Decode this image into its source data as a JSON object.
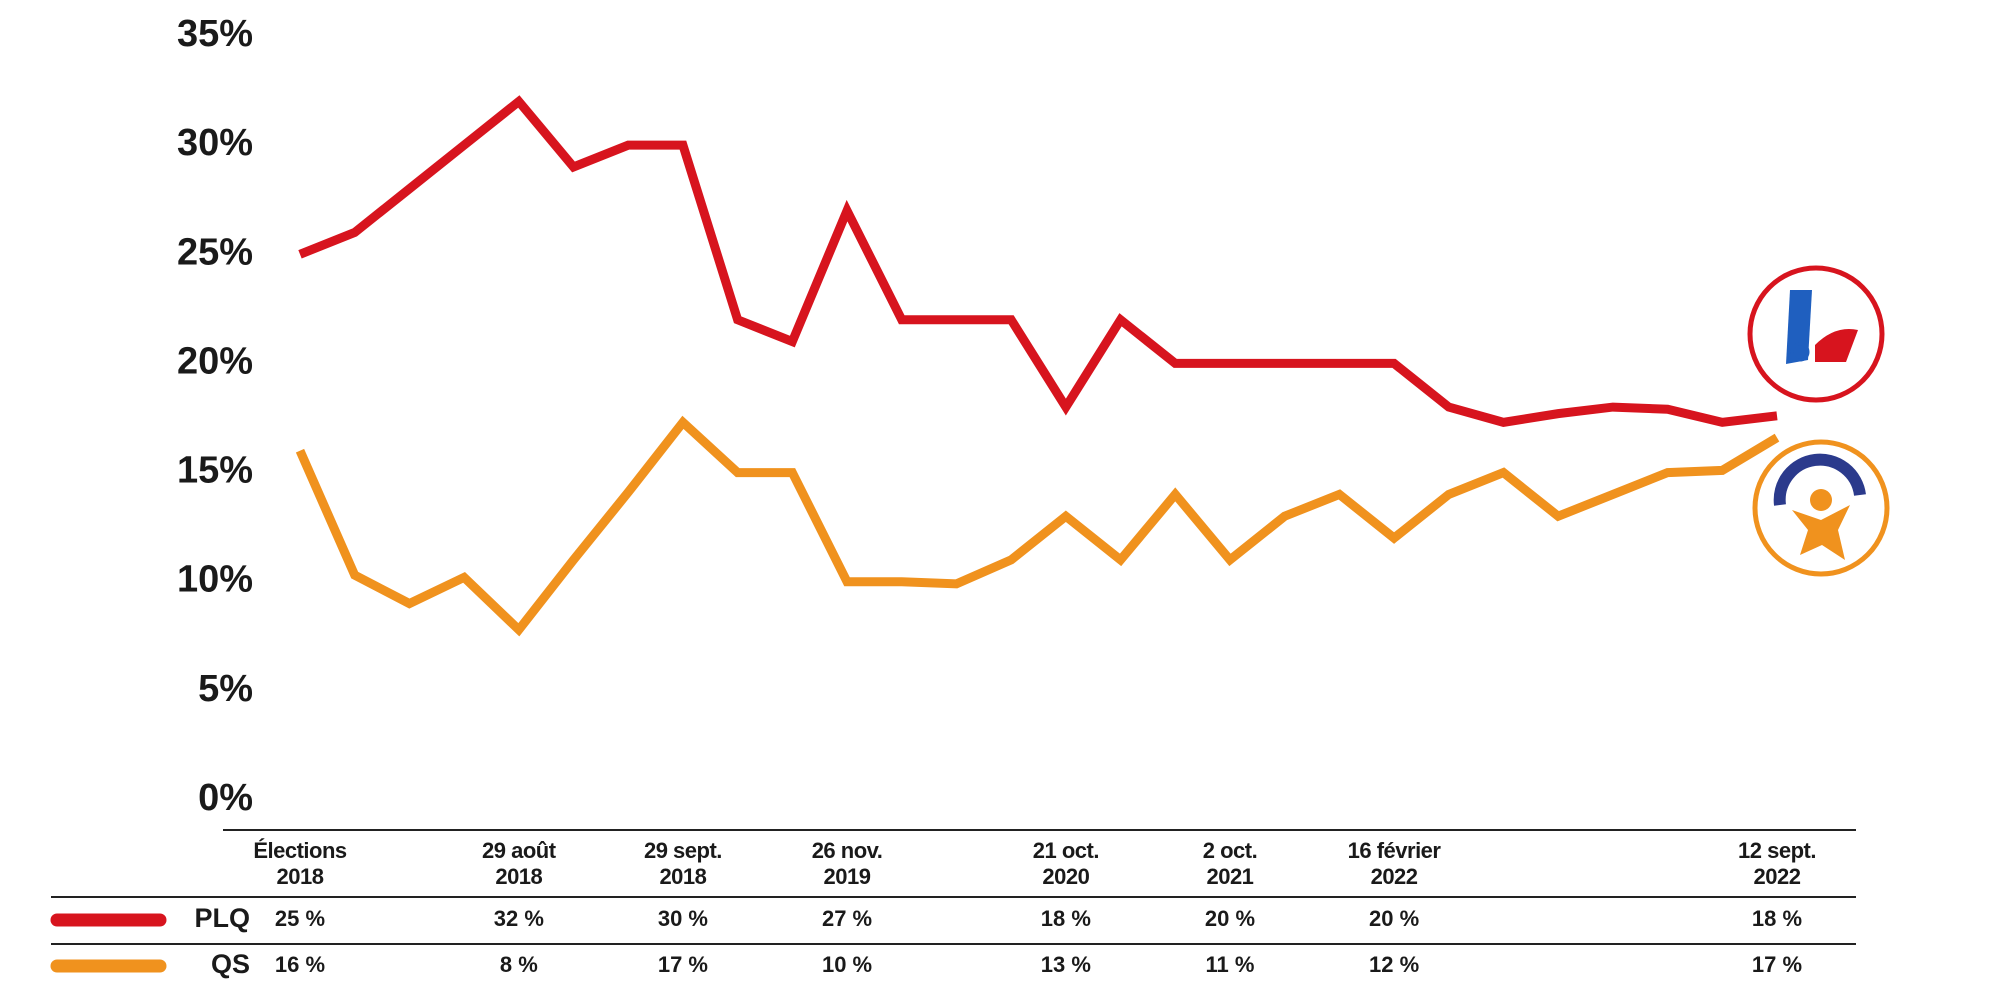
{
  "chart_data": {
    "type": "line",
    "categories": [
      "Élections\n2018",
      null,
      null,
      null,
      "29 août\n2018",
      null,
      null,
      "29 sept.\n2018",
      null,
      null,
      "26 nov.\n2019",
      null,
      null,
      null,
      "21 oct.\n2020",
      null,
      null,
      "2 oct.\n2021",
      null,
      null,
      "16 février\n2022",
      null,
      null,
      null,
      null,
      null,
      null,
      "12 sept.\n2022"
    ],
    "series": [
      {
        "name": "PLQ",
        "color": "#d7141e",
        "values": [
          25,
          26,
          28,
          30,
          32,
          29,
          30,
          30,
          22,
          21,
          27,
          22,
          22,
          22,
          18,
          22,
          20,
          20,
          20,
          20,
          20,
          18,
          17.3,
          17.7,
          18,
          17.9,
          17.3,
          17.6
        ],
        "value_labels": [
          "25 %",
          null,
          null,
          null,
          "32 %",
          null,
          null,
          "30 %",
          null,
          null,
          "27 %",
          null,
          null,
          null,
          "18 %",
          null,
          null,
          "20 %",
          null,
          null,
          "20 %",
          null,
          null,
          null,
          null,
          null,
          null,
          "18 %"
        ]
      },
      {
        "name": "QS",
        "color": "#f0921e",
        "values": [
          16,
          10.3,
          9,
          10.2,
          7.8,
          11,
          14.1,
          17.3,
          15,
          15,
          10,
          10,
          9.9,
          11,
          13,
          11,
          14,
          11,
          13,
          14,
          12,
          14,
          15,
          13,
          14,
          15,
          15.1,
          16.6
        ],
        "value_labels": [
          "16 %",
          null,
          null,
          null,
          "8 %",
          null,
          null,
          "17 %",
          null,
          null,
          "10 %",
          null,
          null,
          null,
          "13 %",
          null,
          null,
          "11 %",
          null,
          null,
          "12 %",
          null,
          null,
          null,
          null,
          null,
          null,
          "17 %"
        ]
      }
    ],
    "ylim": [
      0,
      35
    ],
    "yticks": [
      {
        "value": 0,
        "label": "0%"
      },
      {
        "value": 5,
        "label": "5%"
      },
      {
        "value": 10,
        "label": "10%"
      },
      {
        "value": 15,
        "label": "15%"
      },
      {
        "value": 20,
        "label": "20%"
      },
      {
        "value": 25,
        "label": "25%"
      },
      {
        "value": 30,
        "label": "30%"
      },
      {
        "value": 35,
        "label": "35%"
      }
    ],
    "grid": false
  }
}
